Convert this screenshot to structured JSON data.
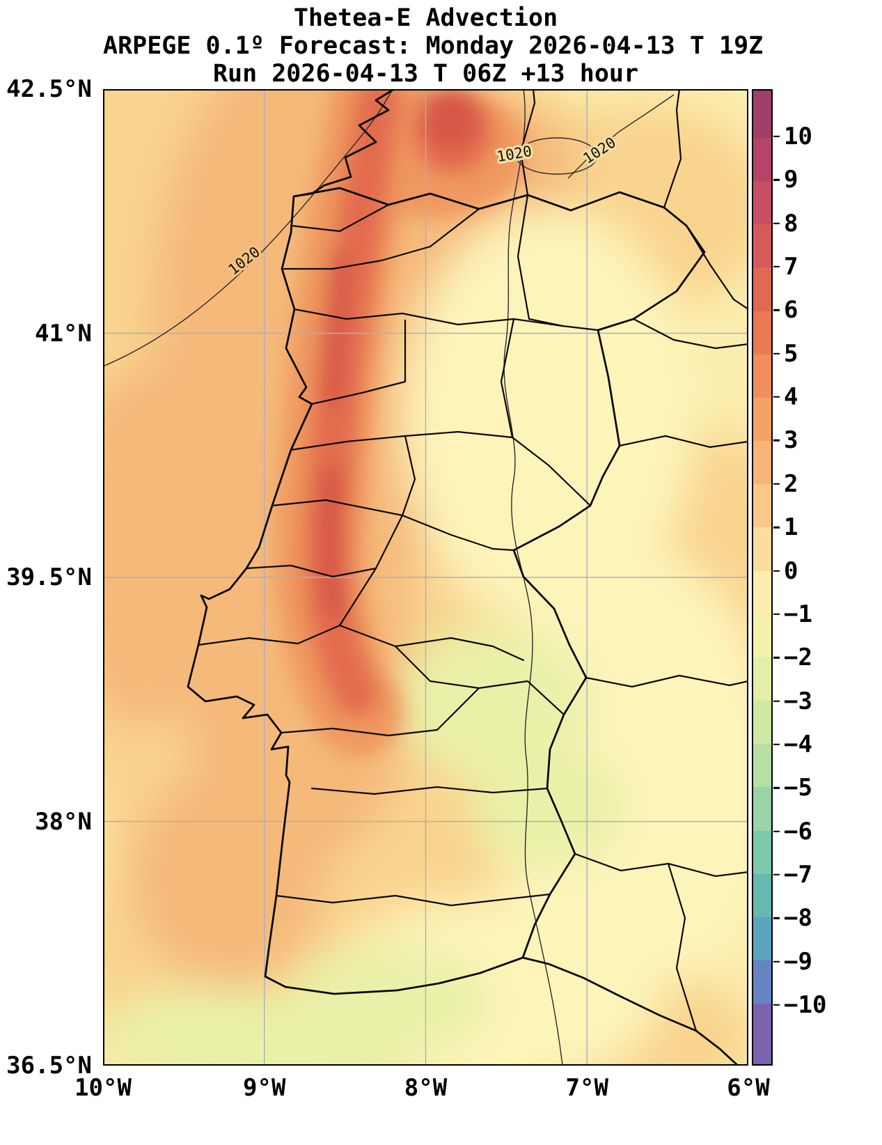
{
  "title": {
    "line1": "Thetea-E Advection",
    "line2": "ARPEGE 0.1º Forecast: Monday 2026-04-13 T 19Z",
    "line3": "Run 2026-04-13 T 06Z +13 hour"
  },
  "axes": {
    "lat_ticks": [
      "42.5°N",
      "41°N",
      "39.5°N",
      "38°N",
      "36.5°N"
    ],
    "lon_ticks": [
      "10°W",
      "9°W",
      "8°W",
      "7°W",
      "6°W"
    ]
  },
  "colorbar": {
    "ticks": [
      "10",
      "9",
      "8",
      "7",
      "6",
      "5",
      "4",
      "3",
      "2",
      "1",
      "0",
      "−1",
      "−2",
      "−3",
      "−4",
      "−5",
      "−6",
      "−7",
      "−8",
      "−9",
      "−10"
    ],
    "segments": [
      "#a23e6b",
      "#b54568",
      "#c74e63",
      "#d55a5c",
      "#e06954",
      "#e97b53",
      "#f08e5c",
      "#f4a267",
      "#f7b577",
      "#fac98a",
      "#fcdc9d",
      "#fdeeb0",
      "#f4f1ad",
      "#e3efa6",
      "#cfe8a4",
      "#b5dfa4",
      "#99d3a7",
      "#7dc7aa",
      "#66b9af",
      "#5da4bf",
      "#6683c2",
      "#7d62ad"
    ]
  },
  "contours": {
    "isobar_label": "1020"
  },
  "chart_data": {
    "type": "heatmap",
    "title": "Thetea-E Advection",
    "subtitle": "ARPEGE 0.1º Forecast: Monday 2026-04-13 T 19Z",
    "run_info": "Run 2026-04-13 T 06Z +13 hour",
    "model": "ARPEGE 0.1º",
    "variable": "Theta-E Advection",
    "valid_time": "Monday 2026-04-13 T 19Z",
    "run_time": "2026-04-13 T 06Z",
    "lead_hours": 13,
    "xlim_lon": [
      -10,
      -6
    ],
    "ylim_lat": [
      36.5,
      42.5
    ],
    "x_tick_labels": [
      "10°W",
      "9°W",
      "8°W",
      "7°W",
      "6°W"
    ],
    "y_tick_labels": [
      "42.5°N",
      "41°N",
      "39.5°N",
      "38°N",
      "36.5°N"
    ],
    "grid": true,
    "colorbar_range": [
      -10,
      10
    ],
    "colorbar_ticks": [
      10,
      9,
      8,
      7,
      6,
      5,
      4,
      3,
      2,
      1,
      0,
      -1,
      -2,
      -3,
      -4,
      -5,
      -6,
      -7,
      -8,
      -9,
      -10
    ],
    "isobar_contour_levels_hPa": [
      1020
    ],
    "approx_field_readings": [
      {
        "region": "narrow band just inland of west coast, ~38.5N to 42.5N near 8.6W–9.1W",
        "advection_value": "4 to 7 (maximum ~7 near 40N–41.5N and near 42.3N)"
      },
      {
        "region": "broad western Portugal and near-coast Atlantic",
        "advection_value": "2 to 4"
      },
      {
        "region": "eastern Portugal and western Spain interior",
        "advection_value": "0 to 2"
      },
      {
        "region": "southeast interior patches (Alentejo / lower Guadiana)",
        "advection_value": "-1 to -2"
      },
      {
        "region": "far west Atlantic (left edge)",
        "advection_value": "0 to 2"
      }
    ]
  }
}
